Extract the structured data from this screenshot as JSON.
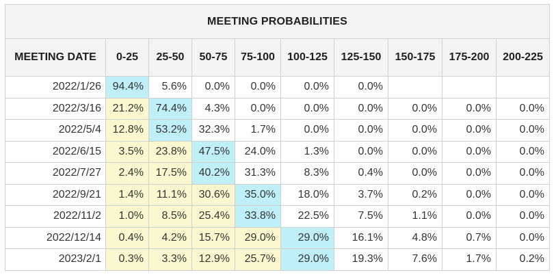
{
  "title": "MEETING PROBABILITIES",
  "date_header": "MEETING DATE",
  "columns": [
    "0-25",
    "25-50",
    "50-75",
    "75-100",
    "100-125",
    "125-150",
    "150-175",
    "175-200",
    "200-225"
  ],
  "rows": [
    {
      "date": "2022/1/26",
      "values": [
        "94.4%",
        "5.6%",
        "0.0%",
        "0.0%",
        "0.0%",
        "0.0%",
        "",
        "",
        ""
      ]
    },
    {
      "date": "2022/3/16",
      "values": [
        "21.2%",
        "74.4%",
        "4.3%",
        "0.0%",
        "0.0%",
        "0.0%",
        "0.0%",
        "0.0%",
        "0.0%"
      ]
    },
    {
      "date": "2022/5/4",
      "values": [
        "12.8%",
        "53.2%",
        "32.3%",
        "1.7%",
        "0.0%",
        "0.0%",
        "0.0%",
        "0.0%",
        "0.0%"
      ]
    },
    {
      "date": "2022/6/15",
      "values": [
        "3.5%",
        "23.8%",
        "47.5%",
        "24.0%",
        "1.3%",
        "0.0%",
        "0.0%",
        "0.0%",
        "0.0%"
      ]
    },
    {
      "date": "2022/7/27",
      "values": [
        "2.4%",
        "17.5%",
        "40.2%",
        "31.3%",
        "8.3%",
        "0.4%",
        "0.0%",
        "0.0%",
        "0.0%"
      ]
    },
    {
      "date": "2022/9/21",
      "values": [
        "1.4%",
        "11.1%",
        "30.6%",
        "35.0%",
        "18.0%",
        "3.7%",
        "0.2%",
        "0.0%",
        "0.0%"
      ]
    },
    {
      "date": "2022/11/2",
      "values": [
        "1.0%",
        "8.5%",
        "25.4%",
        "33.8%",
        "22.5%",
        "7.5%",
        "1.1%",
        "0.0%",
        "0.0%"
      ]
    },
    {
      "date": "2022/12/14",
      "values": [
        "0.4%",
        "4.2%",
        "15.7%",
        "29.0%",
        "29.0%",
        "16.1%",
        "4.8%",
        "0.7%",
        "0.0%"
      ]
    },
    {
      "date": "2023/2/1",
      "values": [
        "0.3%",
        "3.3%",
        "12.9%",
        "25.7%",
        "29.0%",
        "19.3%",
        "7.6%",
        "1.7%",
        "0.2%"
      ]
    }
  ],
  "cell_styles": [
    [
      "hl",
      "wt",
      "wt",
      "wt",
      "wt",
      "wt",
      "wt",
      "wt",
      "wt"
    ],
    [
      "yl",
      "hl",
      "wt",
      "wt",
      "wt",
      "wt",
      "wt",
      "wt",
      "wt"
    ],
    [
      "yl",
      "hl",
      "wt",
      "wt",
      "wt",
      "wt",
      "wt",
      "wt",
      "wt"
    ],
    [
      "yl",
      "yl",
      "hl",
      "wt",
      "wt",
      "wt",
      "wt",
      "wt",
      "wt"
    ],
    [
      "yl",
      "yl",
      "hl",
      "wt",
      "wt",
      "wt",
      "wt",
      "wt",
      "wt"
    ],
    [
      "yl",
      "yl",
      "yl",
      "hl",
      "wt",
      "wt",
      "wt",
      "wt",
      "wt"
    ],
    [
      "yl",
      "yl",
      "yl",
      "hl",
      "wt",
      "wt",
      "wt",
      "wt",
      "wt"
    ],
    [
      "yl",
      "yl",
      "yl",
      "yl",
      "hl",
      "wt",
      "wt",
      "wt",
      "wt"
    ],
    [
      "yl",
      "yl",
      "yl",
      "yl",
      "hl",
      "wt",
      "wt",
      "wt",
      "wt"
    ]
  ],
  "colors": {
    "highlight": "#bff0f7",
    "below": "#fbf8cf",
    "header_bg": "#f3f3f3",
    "border": "#cfcfcf"
  }
}
